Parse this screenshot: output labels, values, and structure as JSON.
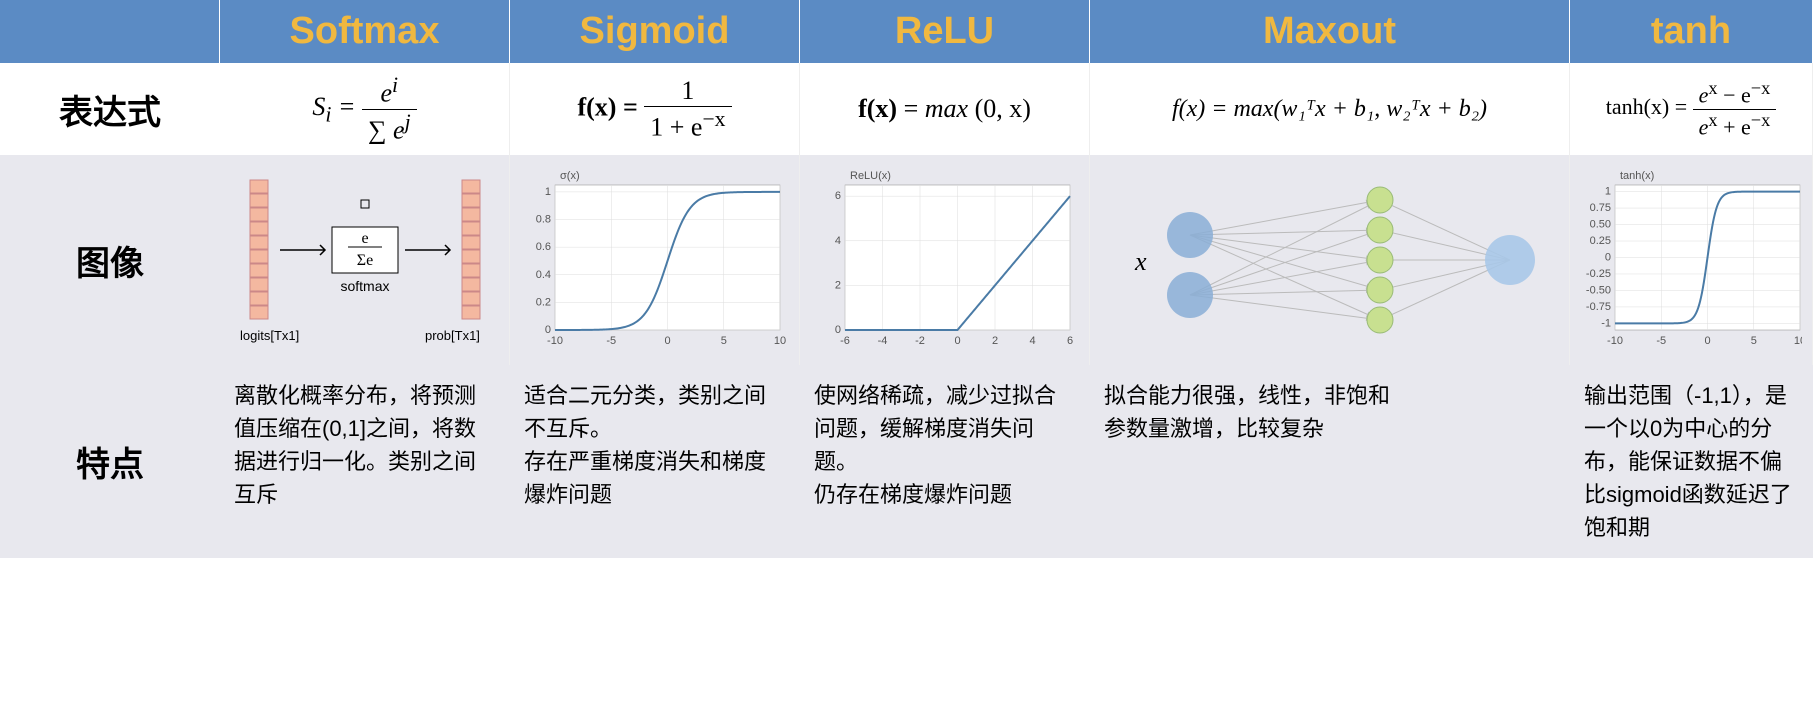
{
  "headers": [
    "Softmax",
    "Sigmoid",
    "ReLU",
    "Maxout",
    "tanh"
  ],
  "row_labels": [
    "表达式",
    "图像",
    "特点"
  ],
  "formulas": {
    "softmax": {
      "lhs": "S",
      "sub": "i",
      "num": "e",
      "num_sup": "i",
      "den_pre": "∑ e",
      "den_sup": "j"
    },
    "sigmoid": {
      "lhs": "f(x) =",
      "num": "1",
      "den": "1 + e",
      "den_sup": "−x"
    },
    "relu": {
      "text": "f(x) = max (0, x)"
    },
    "maxout": {
      "text": "f(x) = max(w₁ᵀx + b₁, w₂ᵀx + b₂)"
    },
    "tanh": {
      "lhs": "tanh(x) =",
      "num_a": "e",
      "num_sup_a": "x",
      "num_b": " − e",
      "num_sup_b": "−x",
      "den_a": "e",
      "den_sup_a": "x",
      "den_b": " + e",
      "den_sup_b": "−x"
    }
  },
  "features": {
    "softmax": "离散化概率分布，将预测值压缩在(0,1]之间，将数据进行归一化。类别之间互斥",
    "sigmoid": "适合二元分类，类别之间不互斥。\n存在严重梯度消失和梯度爆炸问题",
    "relu": "使网络稀疏，减少过拟合问题，缓解梯度消失问题。\n仍存在梯度爆炸问题",
    "maxout": "拟合能力很强，线性，非饱和\n参数量激增，比较复杂",
    "tanh": "输出范围（-1,1），是一个以0为中心的分布，能保证数据不偏\n比sigmoid函数延迟了饱和期"
  },
  "charts": {
    "sigmoid": {
      "label": "σ(x)",
      "xlim": [
        -10,
        10
      ],
      "ylim": [
        0,
        1.05
      ],
      "yticks": [
        0,
        0.2,
        0.4,
        0.6,
        0.8,
        1.0
      ],
      "xticks": [
        -10,
        -5,
        0,
        5,
        10
      ],
      "line_color": "#4a7ba6",
      "grid_color": "#ddd",
      "bg": "#fff"
    },
    "relu": {
      "label": "ReLU(x)",
      "xlim": [
        -6,
        6
      ],
      "ylim": [
        0,
        6.5
      ],
      "yticks": [
        0,
        2,
        4,
        6
      ],
      "xticks": [
        -6,
        -4,
        -2,
        0,
        2,
        4,
        6
      ],
      "line_color": "#4a7ba6",
      "grid_color": "#ddd",
      "bg": "#fff"
    },
    "tanh": {
      "label": "tanh(x)",
      "xlim": [
        -10,
        10
      ],
      "ylim": [
        -1.1,
        1.1
      ],
      "yticks": [
        -1.0,
        -0.75,
        -0.5,
        -0.25,
        0,
        0.25,
        0.5,
        0.75,
        1.0
      ],
      "xticks": [
        -10,
        -5,
        0,
        5,
        10
      ],
      "line_color": "#4a7ba6",
      "grid_color": "#ddd",
      "bg": "#fff"
    },
    "softmax_img": {
      "bar_color": "#f4b8a0",
      "box_text_top": "e",
      "box_text_bot": "Σe",
      "box_label": "softmax",
      "left_label": "logits[Tx1]",
      "right_label": "prob[Tx1]"
    },
    "maxout_img": {
      "input_color": "#8aaed6",
      "hidden_color": "#c8e090",
      "output_color": "#a8c8e8",
      "x_label": "x",
      "edge_color": "#bbb"
    }
  },
  "colors": {
    "header_bg": "#5b8bc4",
    "header_text": "#f0b840",
    "gray_bg": "#e8e8ee"
  }
}
